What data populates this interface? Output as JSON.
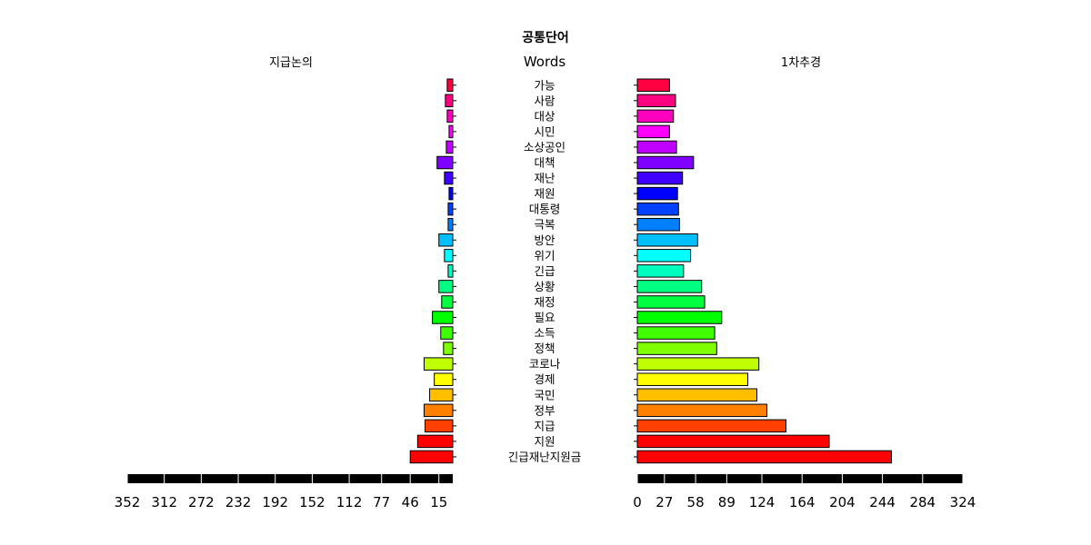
{
  "chart_data": {
    "type": "bar",
    "title": "공통단어",
    "center_label": "Words",
    "categories": [
      "가능",
      "사람",
      "대상",
      "시민",
      "소상공인",
      "대책",
      "재난",
      "재원",
      "대통령",
      "극복",
      "방안",
      "위기",
      "긴급",
      "상황",
      "재정",
      "필요",
      "소득",
      "정책",
      "코로나",
      "경제",
      "국민",
      "정부",
      "지급",
      "지원",
      "긴급재난지원금"
    ],
    "colors": [
      "#FF0040",
      "#FF0080",
      "#FF00BF",
      "#FF00FF",
      "#BF00FF",
      "#8000FF",
      "#4000FF",
      "#0000FF",
      "#0040FF",
      "#0080FF",
      "#00BFFF",
      "#00FFFF",
      "#00FFBF",
      "#00FF80",
      "#00FF40",
      "#00FF00",
      "#40FF00",
      "#80FF00",
      "#BFFF00",
      "#FFFF00",
      "#FFBF00",
      "#FF8000",
      "#FF4000",
      "#FF0000",
      "#FF0000"
    ],
    "series": [
      {
        "name": "지급논의",
        "side": "left",
        "values": [
          6,
          8,
          6,
          4,
          7,
          17,
          9,
          4,
          5,
          5,
          15,
          9,
          5,
          15,
          12,
          22,
          13,
          10,
          31,
          20,
          25,
          31,
          30,
          38,
          46
        ],
        "xlim": [
          0,
          352
        ],
        "ticks": [
          "352",
          "312",
          "272",
          "232",
          "192",
          "152",
          "112",
          "77",
          "46",
          "15"
        ],
        "tick_values": [
          352,
          312,
          272,
          232,
          192,
          152,
          112,
          77,
          46,
          15
        ]
      },
      {
        "name": "1차추경",
        "side": "right",
        "values": [
          32,
          38,
          36,
          32,
          39,
          56,
          45,
          40,
          41,
          42,
          60,
          53,
          46,
          64,
          67,
          84,
          77,
          79,
          121,
          110,
          119,
          129,
          148,
          191,
          253
        ],
        "xlim": [
          0,
          324
        ],
        "ticks": [
          "0",
          "27",
          "58",
          "89",
          "124",
          "164",
          "204",
          "244",
          "284",
          "324"
        ],
        "tick_values": [
          0,
          27,
          58,
          89,
          124,
          164,
          204,
          244,
          284,
          324
        ]
      }
    ],
    "grid": false,
    "legend": "none"
  }
}
